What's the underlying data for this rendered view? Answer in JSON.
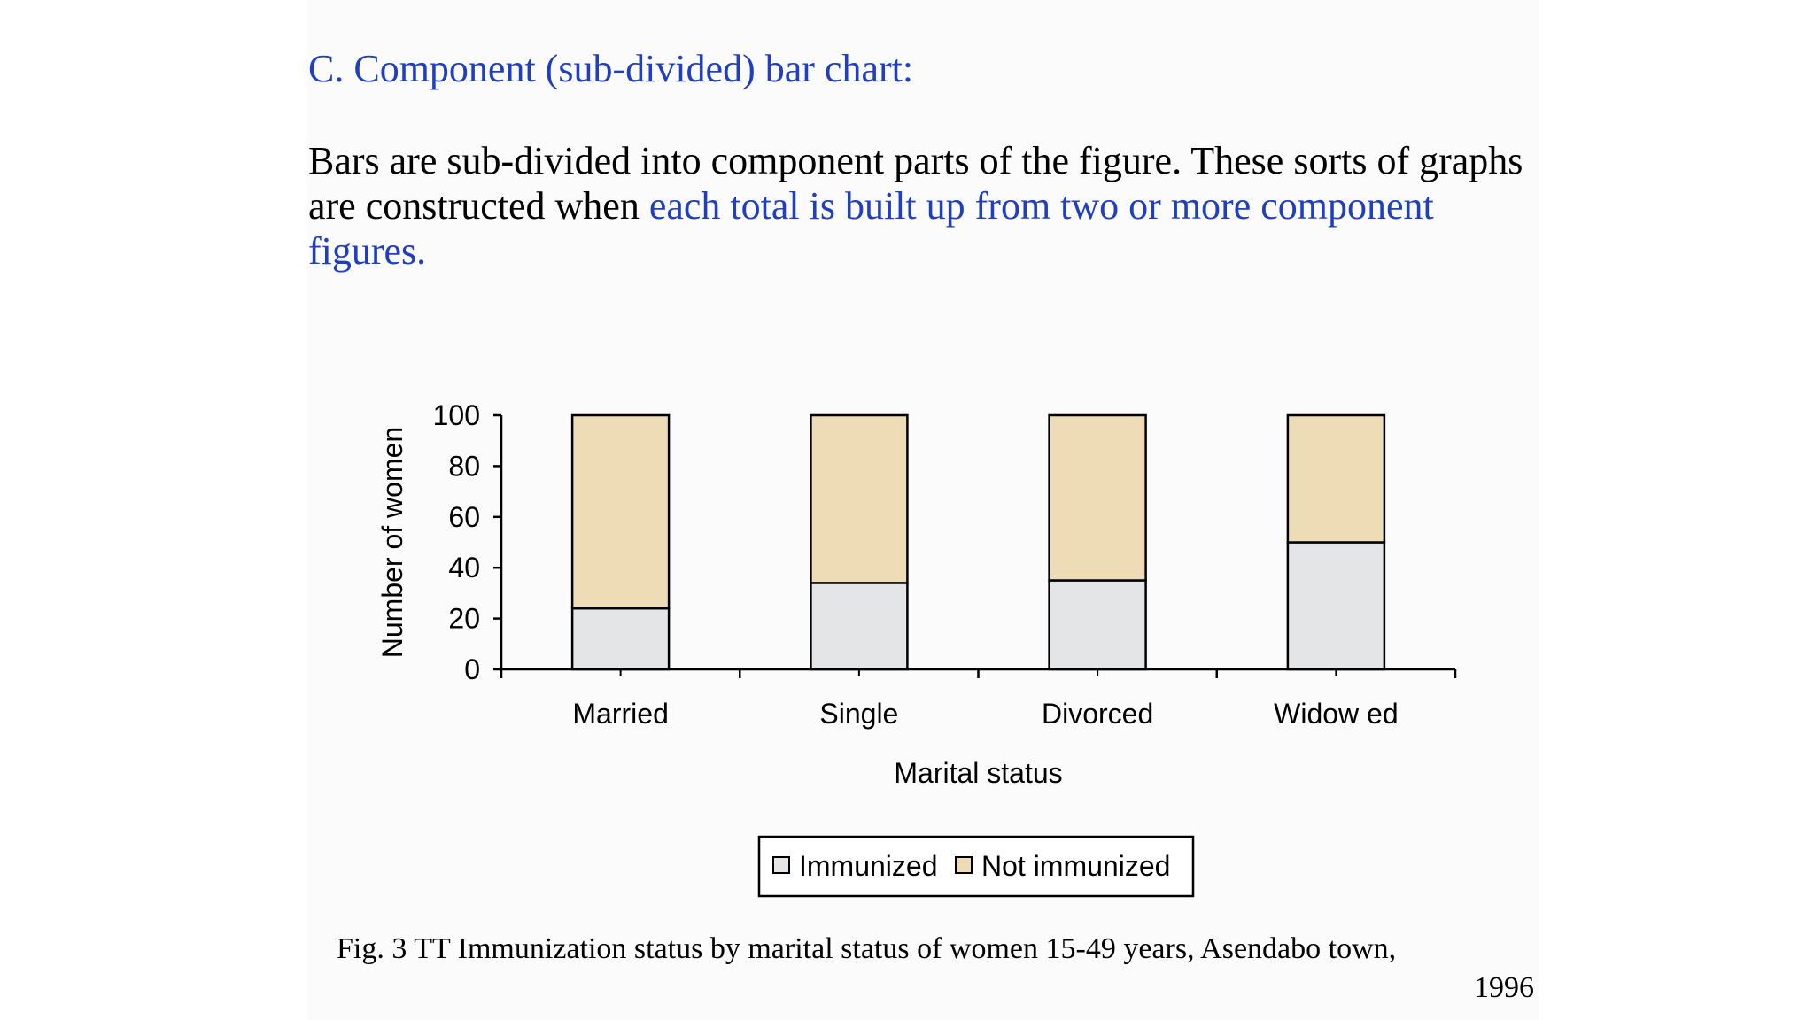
{
  "slide": {
    "title": "C. Component (sub-divided) bar chart:",
    "body_part1": "Bars are sub-divided into component parts of the figure. These sorts of graphs are constructed when ",
    "body_highlight": "each total is built up from two or more component figures.",
    "caption_line1": "Fig. 3 TT Immunization status by marital status of women 15-49 years, Asendabo town,",
    "caption_line2": "1996"
  },
  "colors": {
    "title": "#1f3fbf",
    "highlight": "#1f3fbf",
    "immunized": "#e4e5e7",
    "not_immunized": "#eddcb6"
  },
  "chart_data": {
    "type": "bar",
    "stacked": true,
    "categories": [
      "Married",
      "Single",
      "Divorced",
      "Widow ed"
    ],
    "series": [
      {
        "name": "Immunized",
        "values": [
          24,
          34,
          35,
          50
        ]
      },
      {
        "name": "Not immunized",
        "values": [
          76,
          66,
          65,
          50
        ]
      }
    ],
    "xlabel": "Marital status",
    "ylabel": "Number of women",
    "ylim": [
      0,
      100
    ],
    "yticks": [
      0,
      20,
      40,
      60,
      80,
      100
    ],
    "legend_position": "bottom",
    "grid": false
  }
}
